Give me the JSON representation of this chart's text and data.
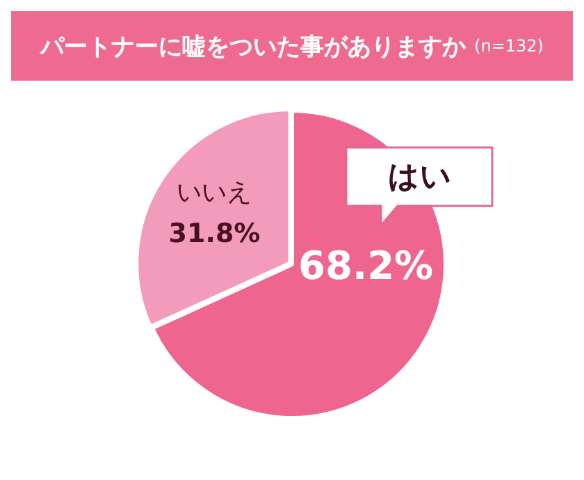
{
  "chart_data": {
    "type": "pie",
    "title": "パートナーに嘘をついた事がありますか",
    "subtitle": "(n=132)",
    "categories": [
      "はい",
      "いいえ"
    ],
    "values": [
      68.2,
      31.8
    ],
    "value_labels": [
      "68.2%",
      "31.8%"
    ],
    "colors": [
      "#ee6590",
      "#f39bbb"
    ],
    "legend": false
  }
}
